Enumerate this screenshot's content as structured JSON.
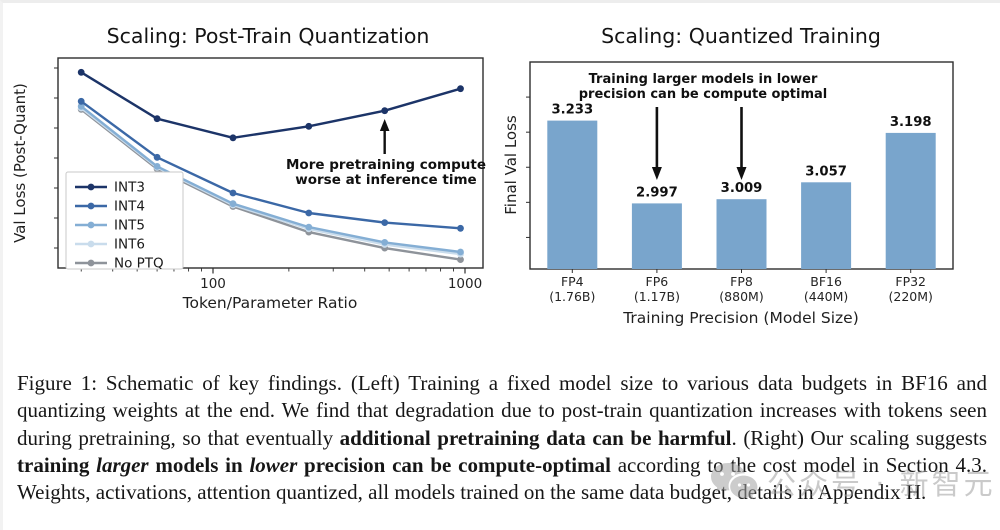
{
  "figure": {
    "left_title": "Scaling: Post-Train Quantization",
    "right_title": "Scaling: Quantized Training"
  },
  "chart_data": [
    {
      "type": "line",
      "title": "Scaling: Post-Train Quantization",
      "xlabel": "Token/Parameter Ratio",
      "ylabel": "Val Loss (Post-Quant)",
      "xscale": "log",
      "x": [
        30,
        60,
        120,
        240,
        480,
        960
      ],
      "xticks": [
        100,
        1000
      ],
      "x_minor_ticks": [
        30,
        40,
        50,
        60,
        70,
        80,
        90,
        200,
        300,
        400,
        500,
        600,
        700,
        800,
        900
      ],
      "xlim": [
        24,
        1150
      ],
      "ylim": [
        0,
        1
      ],
      "y_axis_unlabeled": true,
      "y_units_note": "y axis has tick marks but no numeric labels; values are normalized fraction of plot height (0 = axis bottom, 1 = axis top)",
      "legend_position": "lower left",
      "grid": false,
      "series": [
        {
          "name": "INT3",
          "color": "#1c3468",
          "values": [
            0.932,
            0.711,
            0.62,
            0.675,
            0.749,
            0.854
          ]
        },
        {
          "name": "INT4",
          "color": "#3b68a6",
          "values": [
            0.794,
            0.527,
            0.357,
            0.262,
            0.216,
            0.189
          ]
        },
        {
          "name": "INT5",
          "color": "#84aed4",
          "values": [
            0.77,
            0.484,
            0.306,
            0.195,
            0.122,
            0.076
          ]
        },
        {
          "name": "INT6",
          "color": "#c9dcec",
          "values": [
            0.762,
            0.479,
            0.3,
            0.186,
            0.112,
            0.066
          ]
        },
        {
          "name": "No PTQ",
          "color": "#8e939a",
          "values": [
            0.755,
            0.472,
            0.293,
            0.171,
            0.095,
            0.04
          ]
        }
      ],
      "annotation": {
        "lines": [
          "More pretraining compute",
          "worse at inference time"
        ],
        "arrow_points_to": {
          "series": "INT3",
          "x": 480
        }
      }
    },
    {
      "type": "bar",
      "title": "Scaling: Quantized Training",
      "xlabel": "Training Precision (Model Size)",
      "ylabel": "Final Val Loss",
      "categories": [
        "FP4",
        "FP6",
        "FP8",
        "BF16",
        "FP32"
      ],
      "sublabels": [
        "(1.76B)",
        "(1.17B)",
        "(880M)",
        "(440M)",
        "(220M)"
      ],
      "values": [
        3.233,
        2.997,
        3.009,
        3.057,
        3.198
      ],
      "value_labels": [
        "3.233",
        "2.997",
        "3.009",
        "3.057",
        "3.198"
      ],
      "bar_color": "#79a5cc",
      "ylim": [
        2.81,
        3.4
      ],
      "yticks_unlabeled": [
        2.9,
        3.0,
        3.1,
        3.2,
        3.3
      ],
      "grid": false,
      "annotation": {
        "lines": [
          "Training larger models in lower",
          "precision can be compute optimal"
        ],
        "arrows_point_to_categories": [
          "FP6",
          "FP8"
        ]
      }
    }
  ],
  "caption": {
    "segments": [
      {
        "text": "Figure 1: Schematic of key findings. (Left) Training a fixed model size to various data budgets in BF16 and quantizing weights at the end. We find that degradation due to post-train quantization increases with tokens seen during pretraining, so that eventually "
      },
      {
        "text": "additional pretraining data can be harmful",
        "bold": true
      },
      {
        "text": ". (Right) Our scaling suggests "
      },
      {
        "text": "training ",
        "bold": true
      },
      {
        "text": "larger",
        "bold": true,
        "italic": true
      },
      {
        "text": " models in ",
        "bold": true
      },
      {
        "text": "lower",
        "bold": true,
        "italic": true
      },
      {
        "text": " precision can be compute-optimal",
        "bold": true
      },
      {
        "text": " according to the cost model in Section 4.3. Weights, activations, attention quantized, all models trained on the same data budget, details in Appendix H."
      }
    ]
  },
  "watermark": {
    "icon": "wechat-logo-icon",
    "text": "公众号 · 新智元",
    "color": "#9f9f9f"
  }
}
